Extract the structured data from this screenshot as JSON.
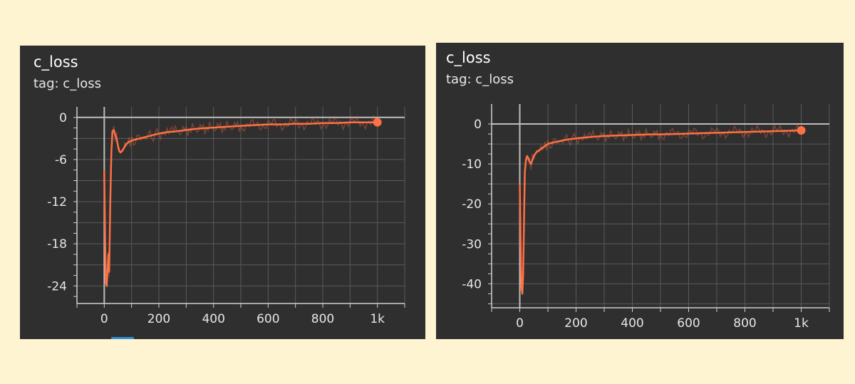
{
  "charts": [
    {
      "id": "left",
      "title": "c_loss",
      "tag": "tag: c_loss"
    },
    {
      "id": "right",
      "title": "c_loss",
      "tag": "tag: c_loss"
    }
  ],
  "colors": {
    "background": "#fff4d1",
    "panel": "#2f2f2f",
    "series": "#ff7043",
    "grid": "#5a5a5a",
    "axis": "#cfcfcf"
  },
  "chart_data": [
    {
      "type": "line",
      "title": "c_loss",
      "subtitle": "tag: c_loss",
      "xlabel": "",
      "ylabel": "",
      "xlim": [
        -100,
        1100
      ],
      "ylim": [
        -26.5,
        1.5
      ],
      "xticks": [
        0,
        200,
        400,
        600,
        800,
        1000
      ],
      "xtick_labels": [
        "0",
        "200",
        "400",
        "600",
        "800",
        "1k"
      ],
      "yticks": [
        0,
        -6,
        -12,
        -18,
        -24
      ],
      "ytick_labels": [
        "0",
        "-6",
        "-12",
        "-18",
        "-24"
      ],
      "grid": true,
      "legend": "none",
      "series": [
        {
          "color": "#ff7043",
          "x": [
            0,
            3,
            6,
            9,
            12,
            15,
            18,
            22,
            26,
            30,
            35,
            40,
            45,
            50,
            55,
            60,
            70,
            80,
            90,
            100,
            120,
            140,
            160,
            180,
            200,
            230,
            260,
            300,
            340,
            380,
            420,
            460,
            500,
            550,
            600,
            650,
            700,
            750,
            800,
            850,
            900,
            950,
            1000
          ],
          "y": [
            -7.5,
            -17,
            -23.5,
            -24,
            -22,
            -19.5,
            -22,
            -12,
            -5,
            -2,
            -1.8,
            -2.5,
            -3,
            -4,
            -4.8,
            -5,
            -4.5,
            -3.8,
            -3.5,
            -3.3,
            -3.1,
            -2.9,
            -2.7,
            -2.5,
            -2.3,
            -2.1,
            -2,
            -1.8,
            -1.6,
            -1.5,
            -1.4,
            -1.3,
            -1.2,
            -1.1,
            -1.0,
            -1.0,
            -0.9,
            -0.9,
            -0.8,
            -0.8,
            -0.7,
            -0.7,
            -0.7
          ]
        }
      ]
    },
    {
      "type": "line",
      "title": "c_loss",
      "subtitle": "tag: c_loss",
      "xlabel": "",
      "ylabel": "",
      "xlim": [
        -100,
        1100
      ],
      "ylim": [
        -46,
        5
      ],
      "xticks": [
        0,
        200,
        400,
        600,
        800,
        1000
      ],
      "xtick_labels": [
        "0",
        "200",
        "400",
        "600",
        "800",
        "1k"
      ],
      "yticks": [
        0,
        -10,
        -20,
        -30,
        -40
      ],
      "ytick_labels": [
        "0",
        "-10",
        "-20",
        "-30",
        "-40"
      ],
      "grid": true,
      "legend": "none",
      "series": [
        {
          "color": "#ff7043",
          "x": [
            0,
            3,
            6,
            9,
            12,
            15,
            18,
            22,
            26,
            30,
            35,
            40,
            45,
            50,
            55,
            60,
            70,
            80,
            90,
            100,
            120,
            140,
            160,
            180,
            200,
            230,
            260,
            300,
            340,
            380,
            420,
            460,
            500,
            550,
            600,
            650,
            700,
            750,
            800,
            850,
            900,
            950,
            1000
          ],
          "y": [
            -15,
            -30,
            -41,
            -42.5,
            -38,
            -25,
            -12,
            -9,
            -8,
            -8.5,
            -9.5,
            -10,
            -9,
            -8,
            -7.5,
            -7,
            -6.5,
            -6,
            -5.5,
            -5,
            -4.6,
            -4.3,
            -4,
            -3.8,
            -3.6,
            -3.4,
            -3.2,
            -3,
            -2.9,
            -2.8,
            -2.7,
            -2.6,
            -2.6,
            -2.5,
            -2.4,
            -2.3,
            -2.2,
            -2.1,
            -2,
            -1.9,
            -1.8,
            -1.7,
            -1.6
          ]
        }
      ]
    }
  ]
}
